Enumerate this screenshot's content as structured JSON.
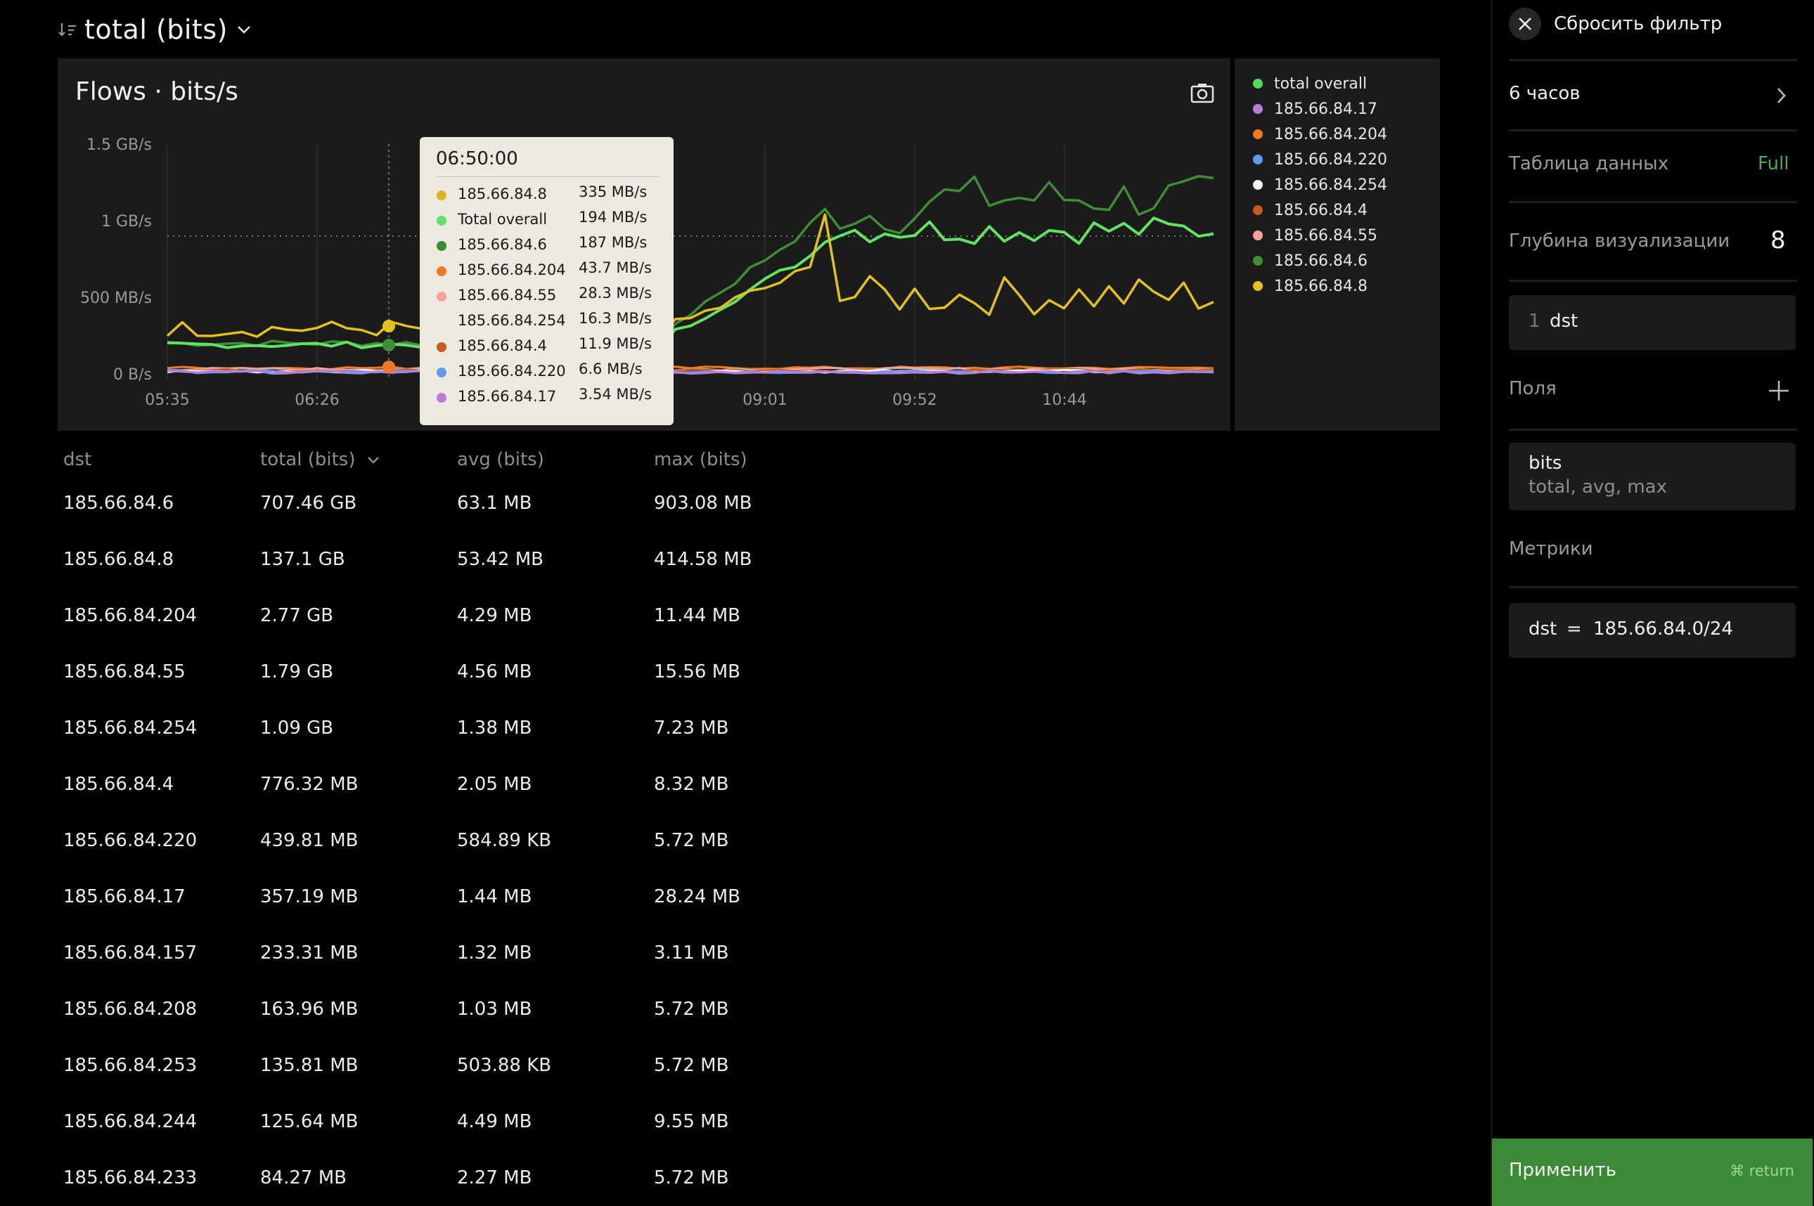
{
  "header": {
    "sort_title": "total (bits)"
  },
  "chart": {
    "title": "Flows · bits/s",
    "y_ticks": [
      "1.5 GB/s",
      "1 GB/s",
      "500 MB/s",
      "0 B/s"
    ],
    "x_ticks": [
      "05:35",
      "06:26",
      "09:01",
      "09:52",
      "10:44"
    ],
    "legend": [
      {
        "label": "total overall",
        "color": "#4ee05a"
      },
      {
        "label": "185.66.84.17",
        "color": "#b77ed9"
      },
      {
        "label": "185.66.84.204",
        "color": "#f07a22"
      },
      {
        "label": "185.66.84.220",
        "color": "#5b9bf0"
      },
      {
        "label": "185.66.84.254",
        "color": "#f2f2f2"
      },
      {
        "label": "185.66.84.4",
        "color": "#c85a1e"
      },
      {
        "label": "185.66.84.55",
        "color": "#f4a39a"
      },
      {
        "label": "185.66.84.6",
        "color": "#3e8e36"
      },
      {
        "label": "185.66.84.8",
        "color": "#e5c21a"
      }
    ],
    "tooltip": {
      "time": "06:50:00",
      "rows": [
        {
          "name": "185.66.84.8",
          "value": "335 MB/s",
          "color": "#d9b81c"
        },
        {
          "name": "Total overall",
          "value": "194 MB/s",
          "color": "#5fe361"
        },
        {
          "name": "185.66.84.6",
          "value": "187 MB/s",
          "color": "#3c8c34"
        },
        {
          "name": "185.66.84.204",
          "value": "43.7 MB/s",
          "color": "#f07a22"
        },
        {
          "name": "185.66.84.55",
          "value": "28.3 MB/s",
          "color": "#f4a39a"
        },
        {
          "name": "185.66.84.254",
          "value": "16.3 MB/s",
          "color": ""
        },
        {
          "name": "185.66.84.4",
          "value": "11.9 MB/s",
          "color": "#c85a1e"
        },
        {
          "name": "185.66.84.220",
          "value": "6.6 MB/s",
          "color": "#5b9bf0"
        },
        {
          "name": "185.66.84.17",
          "value": "3.54 MB/s",
          "color": "#b77ed9"
        }
      ]
    }
  },
  "table": {
    "headers": [
      "dst",
      "total (bits)",
      "avg (bits)",
      "max (bits)"
    ],
    "rows": [
      [
        "185.66.84.6",
        "707.46 GB",
        "63.1 MB",
        "903.08 MB"
      ],
      [
        "185.66.84.8",
        "137.1 GB",
        "53.42 MB",
        "414.58 MB"
      ],
      [
        "185.66.84.204",
        "2.77 GB",
        "4.29 MB",
        "11.44 MB"
      ],
      [
        "185.66.84.55",
        "1.79 GB",
        "4.56 MB",
        "15.56 MB"
      ],
      [
        "185.66.84.254",
        "1.09 GB",
        "1.38 MB",
        "7.23 MB"
      ],
      [
        "185.66.84.4",
        "776.32 MB",
        "2.05 MB",
        "8.32 MB"
      ],
      [
        "185.66.84.220",
        "439.81 MB",
        "584.89 KB",
        "5.72 MB"
      ],
      [
        "185.66.84.17",
        "357.19 MB",
        "1.44 MB",
        "28.24 MB"
      ],
      [
        "185.66.84.157",
        "233.31 MB",
        "1.32 MB",
        "3.11 MB"
      ],
      [
        "185.66.84.208",
        "163.96 MB",
        "1.03 MB",
        "5.72 MB"
      ],
      [
        "185.66.84.253",
        "135.81 MB",
        "503.88 KB",
        "5.72 MB"
      ],
      [
        "185.66.84.244",
        "125.64 MB",
        "4.49 MB",
        "9.55 MB"
      ],
      [
        "185.66.84.233",
        "84.27 MB",
        "2.27 MB",
        "5.72 MB"
      ]
    ]
  },
  "sidebar": {
    "reset_filter": "Сбросить фильтр",
    "time_range": "6 часов",
    "data_table_label": "Таблица данных",
    "data_table_value": "Full",
    "depth_label": "Глубина визуализации",
    "depth_value": "8",
    "dimension_index": "1",
    "dimension_name": "dst",
    "fields_label": "Поля",
    "field_name": "bits",
    "field_aggs": "total, avg, max",
    "metrics_label": "Метрики",
    "filter_key": "dst",
    "filter_op": "=",
    "filter_value": "185.66.84.0/24",
    "apply_label": "Применить",
    "apply_shortcut": "⌘ return"
  }
}
